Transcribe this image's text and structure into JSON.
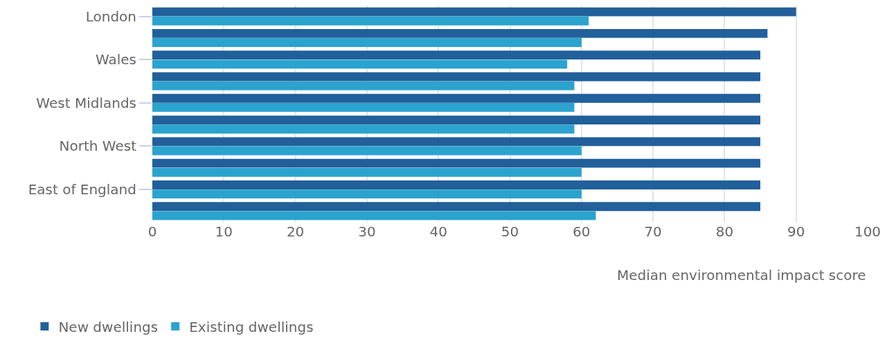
{
  "chart_data": {
    "type": "bar",
    "orientation": "horizontal",
    "xlabel": "Median environmental impact score",
    "categories": [
      "London",
      null,
      "Wales",
      null,
      "West Midlands",
      null,
      "North West",
      null,
      "East of England",
      null
    ],
    "series": [
      {
        "name": "New dwellings",
        "color": "#21609a",
        "values": [
          90,
          86,
          85,
          85,
          85,
          85,
          85,
          85,
          85,
          85
        ]
      },
      {
        "name": "Existing dwellings",
        "color": "#2ba3cf",
        "values": [
          61,
          60,
          58,
          59,
          59,
          59,
          60,
          60,
          60,
          62
        ]
      }
    ],
    "xlim": [
      0,
      100
    ],
    "xticks": [
      0,
      10,
      20,
      30,
      40,
      50,
      60,
      70,
      80,
      90,
      100
    ],
    "grid": "x",
    "legend": "bottom left"
  }
}
